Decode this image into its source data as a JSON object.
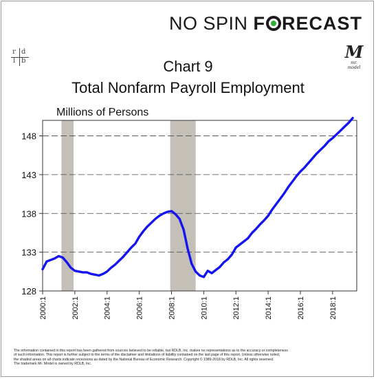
{
  "brand": {
    "part1": "NO SPIN",
    "part2_pre": "F",
    "part2_post": "RECAST"
  },
  "logo_left": {
    "r": "r",
    "d": "d",
    "l": "l",
    "b": "b"
  },
  "logo_right": {
    "mark": "M",
    "text": "mr. model"
  },
  "chart_data": {
    "type": "line",
    "title": "Chart 9",
    "subtitle": "Total Nonfarm Payroll Employment",
    "ylabel": "Millions of Persons",
    "xlabel": "",
    "ylim": [
      128,
      150
    ],
    "xlim": [
      2000.0,
      2019.5
    ],
    "yticks": [
      128,
      133,
      138,
      143,
      148
    ],
    "xticks": [
      "2000:1",
      "2002:1",
      "2004:1",
      "2006:1",
      "2008:1",
      "2010:1",
      "2012:1",
      "2014:1",
      "2016:1",
      "2018:1"
    ],
    "xtick_values": [
      2000,
      2002,
      2004,
      2006,
      2008,
      2010,
      2012,
      2014,
      2016,
      2018
    ],
    "grid": "horizontal",
    "series_color": "#1414ee",
    "recessions": [
      [
        2001.17,
        2001.92
      ],
      [
        2007.92,
        2009.5
      ]
    ],
    "x": [
      2000.0,
      2000.25,
      2000.5,
      2000.75,
      2001.0,
      2001.25,
      2001.5,
      2001.75,
      2002.0,
      2002.25,
      2002.5,
      2002.75,
      2003.0,
      2003.25,
      2003.5,
      2003.75,
      2004.0,
      2004.25,
      2004.5,
      2004.75,
      2005.0,
      2005.25,
      2005.5,
      2005.75,
      2006.0,
      2006.25,
      2006.5,
      2006.75,
      2007.0,
      2007.25,
      2007.5,
      2007.75,
      2008.0,
      2008.25,
      2008.5,
      2008.75,
      2009.0,
      2009.25,
      2009.5,
      2009.75,
      2010.0,
      2010.25,
      2010.5,
      2010.75,
      2011.0,
      2011.25,
      2011.5,
      2011.75,
      2012.0,
      2012.25,
      2012.5,
      2012.75,
      2013.0,
      2013.25,
      2013.5,
      2013.75,
      2014.0,
      2014.25,
      2014.5,
      2014.75,
      2015.0,
      2015.25,
      2015.5,
      2015.75,
      2016.0,
      2016.25,
      2016.5,
      2016.75,
      2017.0,
      2017.25,
      2017.5,
      2017.75,
      2018.0,
      2018.25,
      2018.5,
      2018.75,
      2019.0,
      2019.25
    ],
    "values": [
      130.8,
      131.8,
      132.0,
      132.2,
      132.5,
      132.3,
      131.7,
      131.0,
      130.6,
      130.5,
      130.4,
      130.4,
      130.2,
      130.1,
      130.0,
      130.2,
      130.5,
      131.0,
      131.4,
      131.9,
      132.4,
      133.0,
      133.6,
      134.1,
      135.0,
      135.7,
      136.3,
      136.8,
      137.3,
      137.7,
      138.0,
      138.2,
      138.3,
      137.9,
      137.3,
      135.9,
      133.5,
      131.5,
      130.5,
      130.0,
      129.8,
      130.6,
      130.3,
      130.7,
      131.1,
      131.7,
      132.1,
      132.7,
      133.6,
      134.0,
      134.4,
      134.8,
      135.5,
      136.0,
      136.6,
      137.1,
      137.7,
      138.5,
      139.2,
      139.9,
      140.6,
      141.4,
      142.1,
      142.8,
      143.4,
      143.9,
      144.5,
      145.1,
      145.7,
      146.2,
      146.7,
      147.3,
      147.7,
      148.2,
      148.7,
      149.2,
      149.7,
      150.3
    ]
  },
  "disclaimer": [
    "The information contained in this report has been gathered from sources believed to be reliable, but RDLB, Inc. makes no representations as to the accuracy or completeness",
    "of such information. This report is further subject to the terms of the disclaimer and limitations of liability contained on the last page of this report. Unless otherwise noted,",
    "the shaded areas on all charts indicate recessions as dated by the National Bureau of Economic Research. Copyright © 1989-2018 by RDLB, Inc. All rights reserved.",
    "The trademark Mr. Model is owned by RDLB, Inc."
  ]
}
